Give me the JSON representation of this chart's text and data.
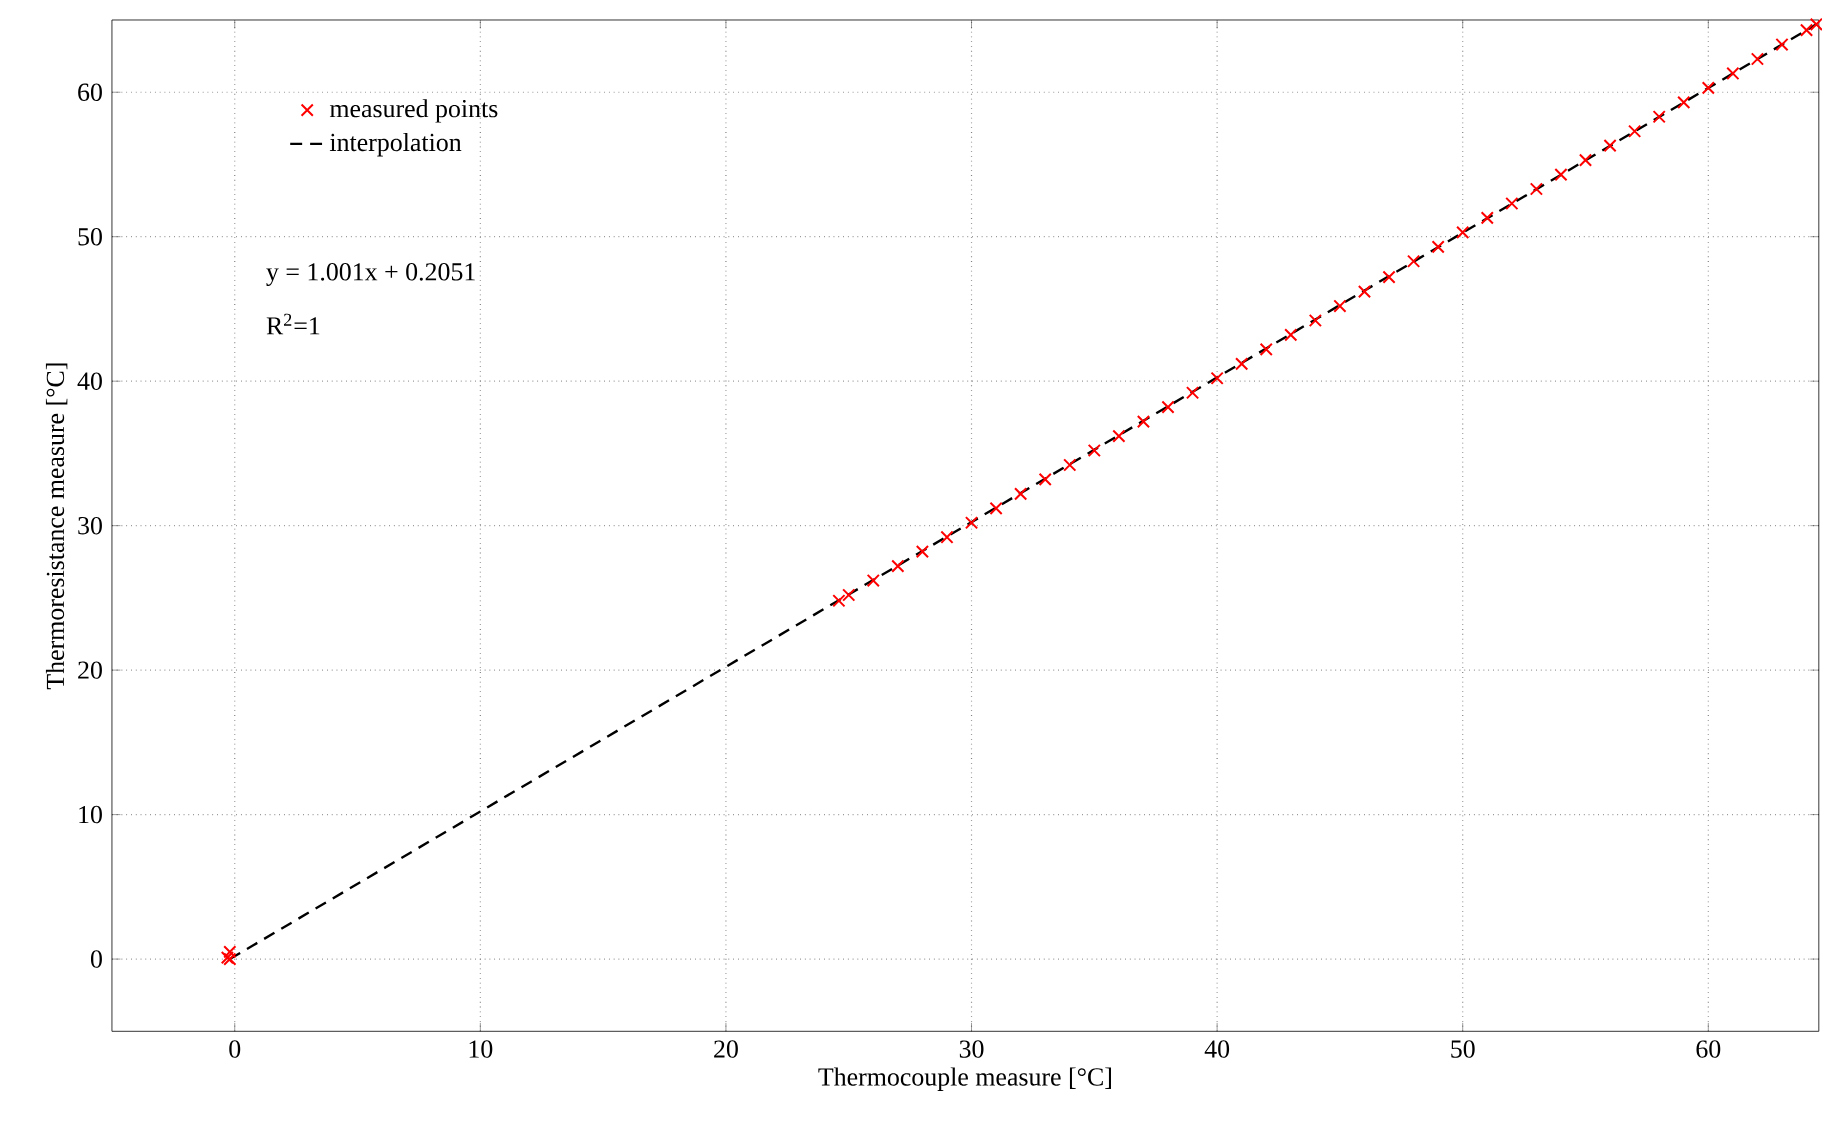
{
  "chart_data": {
    "type": "scatter",
    "xlabel": "Thermocouple measure [°C]",
    "ylabel": "Thermoresistance measure [°C]",
    "xlim": [
      -5,
      64.5
    ],
    "ylim": [
      -5,
      65
    ],
    "xticks": [
      0,
      10,
      20,
      30,
      40,
      50,
      60
    ],
    "yticks": [
      0,
      10,
      20,
      30,
      40,
      50,
      60
    ],
    "grid": true,
    "legend": "top left",
    "annotations": [
      "y = 1.001x + 0.2051",
      "R$^{2}$=1"
    ],
    "series": [
      {
        "name": "measured points",
        "color": "#ff0000",
        "marker": "cross",
        "x": [
          -0.3,
          -0.2,
          -0.2,
          24.6,
          25,
          26,
          27,
          28,
          29,
          30,
          31,
          32,
          33,
          34,
          35,
          36,
          37,
          38,
          39,
          40,
          41,
          42,
          43,
          44,
          45,
          46,
          47,
          48,
          49,
          50,
          51,
          52,
          53,
          54,
          55,
          56,
          57,
          58,
          59,
          60,
          61,
          62,
          63,
          64,
          64.4
        ],
        "values": [
          0.1,
          0.5,
          0.0,
          24.8,
          25.2,
          26.2,
          27.2,
          28.2,
          29.2,
          30.2,
          31.2,
          32.2,
          33.2,
          34.2,
          35.2,
          36.2,
          37.2,
          38.2,
          39.2,
          40.2,
          41.2,
          42.2,
          43.2,
          44.2,
          45.2,
          46.2,
          47.2,
          48.3,
          49.3,
          50.3,
          51.3,
          52.3,
          53.3,
          54.3,
          55.3,
          56.3,
          57.3,
          58.3,
          59.3,
          60.3,
          61.3,
          62.3,
          63.3,
          64.3,
          64.7
        ]
      },
      {
        "name": "interpolation",
        "type": "line",
        "color": "#000000",
        "line_style": "dashed",
        "marker": "none",
        "x": [
          -0.2,
          64.4
        ],
        "values": [
          0.0,
          64.7
        ]
      }
    ]
  }
}
